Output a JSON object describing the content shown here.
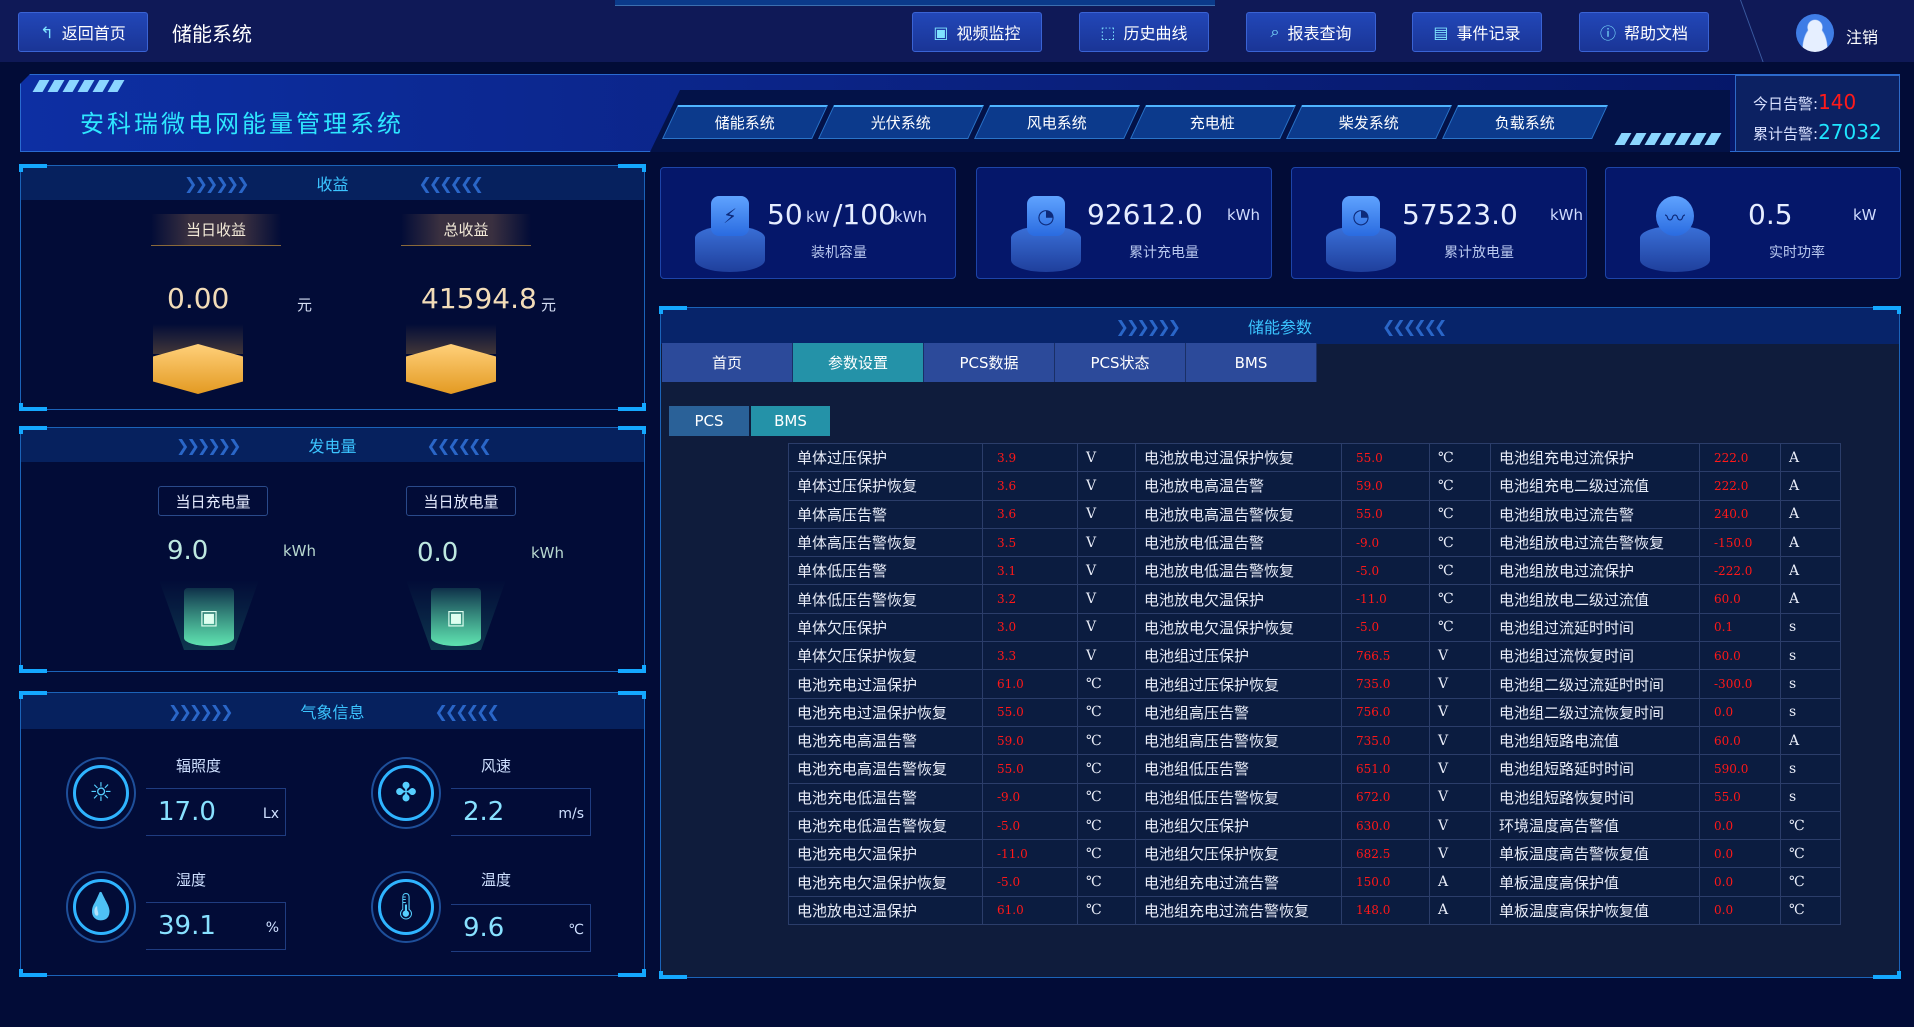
{
  "topbar": {
    "back_label": "返回首页",
    "system_name": "储能系统",
    "buttons": [
      {
        "label": "视频监控",
        "icon": "video-icon"
      },
      {
        "label": "历史曲线",
        "icon": "chart-icon"
      },
      {
        "label": "报表查询",
        "icon": "search-icon"
      },
      {
        "label": "事件记录",
        "icon": "document-icon"
      },
      {
        "label": "帮助文档",
        "icon": "help-icon"
      }
    ],
    "logout_label": "注销"
  },
  "banner": {
    "title": "安科瑞微电网能量管理系统",
    "tabs": [
      "储能系统",
      "光伏系统",
      "风电系统",
      "充电桩",
      "柴发系统",
      "负载系统"
    ],
    "alarm_today_label": "今日告警:",
    "alarm_today_value": "140",
    "alarm_total_label": "累计告警:",
    "alarm_total_value": "27032"
  },
  "income": {
    "title": "收益",
    "today_label": "当日收益",
    "today_value": "0.00",
    "today_unit": "元",
    "total_label": "总收益",
    "total_value": "41594.8",
    "total_unit": "元"
  },
  "generation": {
    "title": "发电量",
    "charge_label": "当日充电量",
    "charge_value": "9.0",
    "charge_unit": "kWh",
    "discharge_label": "当日放电量",
    "discharge_value": "0.0",
    "discharge_unit": "kWh"
  },
  "weather": {
    "title": "气象信息",
    "items": [
      {
        "label": "辐照度",
        "value": "17.0",
        "unit": "Lx",
        "icon": "sun-icon"
      },
      {
        "label": "风速",
        "value": "2.2",
        "unit": "m/s",
        "icon": "fan-icon"
      },
      {
        "label": "湿度",
        "value": "39.1",
        "unit": "%",
        "icon": "droplet-icon"
      },
      {
        "label": "温度",
        "value": "9.6",
        "unit": "℃",
        "icon": "thermometer-icon"
      }
    ]
  },
  "cards": [
    {
      "value": "50",
      "unit": "kW",
      "value2": "/100",
      "unit2": "kWh",
      "label": "装机容量",
      "icon": "battery-icon"
    },
    {
      "value": "92612.0",
      "unit": "kWh",
      "label": "累计充电量",
      "icon": "meter-icon"
    },
    {
      "value": "57523.0",
      "unit": "kWh",
      "label": "累计放电量",
      "icon": "meter-icon"
    },
    {
      "value": "0.5",
      "unit": "kW",
      "label": "实时功率",
      "icon": "pulse-icon"
    }
  ],
  "main": {
    "title": "储能参数",
    "tabs": [
      "首页",
      "参数设置",
      "PCS数据",
      "PCS状态",
      "BMS"
    ],
    "active_tab": "参数设置",
    "subtabs": [
      "PCS",
      "BMS"
    ],
    "active_subtab": "BMS",
    "rows": [
      [
        [
          "单体过压保护",
          "3.9",
          "V"
        ],
        [
          "电池放电过温保护恢复",
          "55.0",
          "℃"
        ],
        [
          "电池组充电过流保护",
          "222.0",
          "A"
        ]
      ],
      [
        [
          "单体过压保护恢复",
          "3.6",
          "V"
        ],
        [
          "电池放电高温告警",
          "59.0",
          "℃"
        ],
        [
          "电池组充电二级过流值",
          "222.0",
          "A"
        ]
      ],
      [
        [
          "单体高压告警",
          "3.6",
          "V"
        ],
        [
          "电池放电高温告警恢复",
          "55.0",
          "℃"
        ],
        [
          "电池组放电过流告警",
          "240.0",
          "A"
        ]
      ],
      [
        [
          "单体高压告警恢复",
          "3.5",
          "V"
        ],
        [
          "电池放电低温告警",
          "-9.0",
          "℃"
        ],
        [
          "电池组放电过流告警恢复",
          "-150.0",
          "A"
        ]
      ],
      [
        [
          "单体低压告警",
          "3.1",
          "V"
        ],
        [
          "电池放电低温告警恢复",
          "-5.0",
          "℃"
        ],
        [
          "电池组放电过流保护",
          "-222.0",
          "A"
        ]
      ],
      [
        [
          "单体低压告警恢复",
          "3.2",
          "V"
        ],
        [
          "电池放电欠温保护",
          "-11.0",
          "℃"
        ],
        [
          "电池组放电二级过流值",
          "60.0",
          "A"
        ]
      ],
      [
        [
          "单体欠压保护",
          "3.0",
          "V"
        ],
        [
          "电池放电欠温保护恢复",
          "-5.0",
          "℃"
        ],
        [
          "电池组过流延时时间",
          "0.1",
          "s"
        ]
      ],
      [
        [
          "单体欠压保护恢复",
          "3.3",
          "V"
        ],
        [
          "电池组过压保护",
          "766.5",
          "V"
        ],
        [
          "电池组过流恢复时间",
          "60.0",
          "s"
        ]
      ],
      [
        [
          "电池充电过温保护",
          "61.0",
          "℃"
        ],
        [
          "电池组过压保护恢复",
          "735.0",
          "V"
        ],
        [
          "电池组二级过流延时时间",
          "-300.0",
          "s"
        ]
      ],
      [
        [
          "电池充电过温保护恢复",
          "55.0",
          "℃"
        ],
        [
          "电池组高压告警",
          "756.0",
          "V"
        ],
        [
          "电池组二级过流恢复时间",
          "0.0",
          "s"
        ]
      ],
      [
        [
          "电池充电高温告警",
          "59.0",
          "℃"
        ],
        [
          "电池组高压告警恢复",
          "735.0",
          "V"
        ],
        [
          "电池组短路电流值",
          "60.0",
          "A"
        ]
      ],
      [
        [
          "电池充电高温告警恢复",
          "55.0",
          "℃"
        ],
        [
          "电池组低压告警",
          "651.0",
          "V"
        ],
        [
          "电池组短路延时时间",
          "590.0",
          "s"
        ]
      ],
      [
        [
          "电池充电低温告警",
          "-9.0",
          "℃"
        ],
        [
          "电池组低压告警恢复",
          "672.0",
          "V"
        ],
        [
          "电池组短路恢复时间",
          "55.0",
          "s"
        ]
      ],
      [
        [
          "电池充电低温告警恢复",
          "-5.0",
          "℃"
        ],
        [
          "电池组欠压保护",
          "630.0",
          "V"
        ],
        [
          "环境温度高告警值",
          "0.0",
          "℃"
        ]
      ],
      [
        [
          "电池充电欠温保护",
          "-11.0",
          "℃"
        ],
        [
          "电池组欠压保护恢复",
          "682.5",
          "V"
        ],
        [
          "单板温度高告警恢复值",
          "0.0",
          "℃"
        ]
      ],
      [
        [
          "电池充电欠温保护恢复",
          "-5.0",
          "℃"
        ],
        [
          "电池组充电过流告警",
          "150.0",
          "A"
        ],
        [
          "单板温度高保护值",
          "0.0",
          "℃"
        ]
      ],
      [
        [
          "电池放电过温保护",
          "61.0",
          "℃"
        ],
        [
          "电池组充电过流告警恢复",
          "148.0",
          "A"
        ],
        [
          "单板温度高保护恢复值",
          "0.0",
          "℃"
        ]
      ]
    ]
  },
  "colors": {
    "background": "#020c37",
    "accent": "#2ee6ff",
    "alarm_red": "#ff1818",
    "active_tab": "#2492a8"
  }
}
